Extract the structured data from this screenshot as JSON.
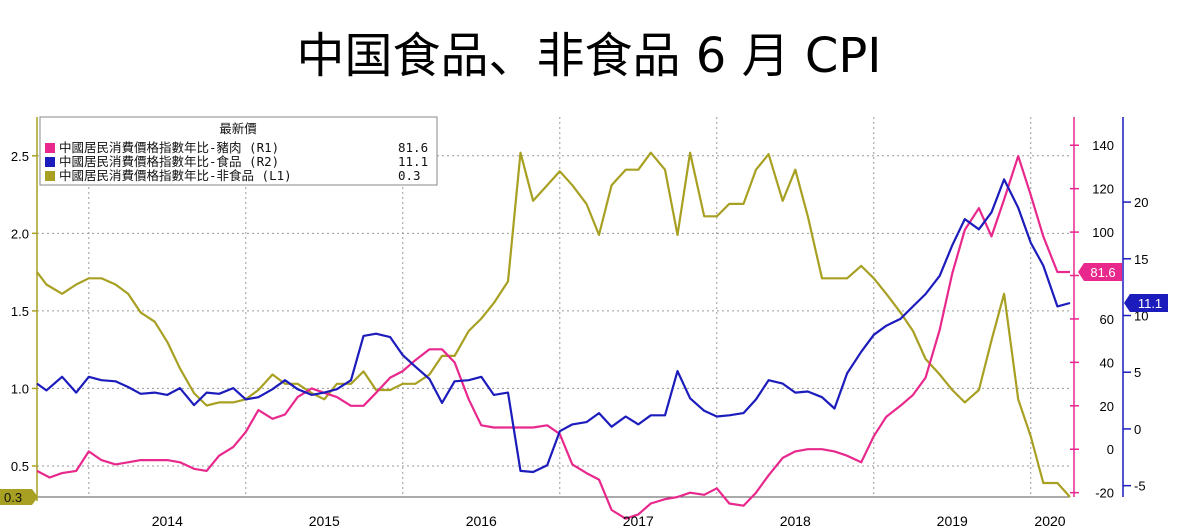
{
  "chart_data": {
    "type": "line",
    "title": "中国食品、非食品 6 月 CPI",
    "x_labels": [
      "2014",
      "2015",
      "2016",
      "2017",
      "2018",
      "2019",
      "2020"
    ],
    "x_range": [
      2013.67,
      2020.25
    ],
    "grid": true,
    "legend": {
      "position": "top-left",
      "header": "最新價",
      "entries": [
        {
          "label": "中國居民消費價格指數年比-豬肉 (R1)",
          "value": "81.6",
          "color": "#e8288c"
        },
        {
          "label": "中國居民消費價格指數年比-食品 (R2)",
          "value": "11.1",
          "color": "#1c1cbd"
        },
        {
          "label": "中國居民消費價格指數年比-非食品 (L1)",
          "value": "0.3",
          "color": "#a8a022"
        }
      ]
    },
    "axes": {
      "L1": {
        "side": "left",
        "ylim": [
          0.3,
          2.75
        ],
        "ticks": [
          0.5,
          1.0,
          1.5,
          2.0,
          2.5
        ],
        "tick_labels": [
          "0.5",
          "1.0",
          "1.5",
          "2.0",
          "2.5"
        ],
        "color": "#a8a022"
      },
      "R1": {
        "side": "right",
        "ylim": [
          -22,
          153
        ],
        "ticks": [
          -20,
          0,
          20,
          40,
          60,
          80,
          100,
          120,
          140
        ],
        "tick_labels": [
          "-20",
          "0",
          "20",
          "40",
          "60",
          "80",
          "100",
          "120",
          "140"
        ],
        "color": "#e8288c"
      },
      "R2": {
        "side": "right",
        "ylim": [
          -6,
          27.5
        ],
        "ticks": [
          -5,
          0,
          5,
          10,
          15,
          20
        ],
        "tick_labels": [
          "-5",
          "0",
          "5",
          "10",
          "15",
          "20"
        ],
        "color": "#1c1cbd"
      }
    },
    "series": [
      {
        "name": "中國居民消費價格指數年比-非食品 (L1)",
        "axis": "L1",
        "color": "#a8a022",
        "last_label": "0.3",
        "points": [
          [
            2013.67,
            1.75
          ],
          [
            2013.73,
            1.67
          ],
          [
            2013.83,
            1.61
          ],
          [
            2013.92,
            1.67
          ],
          [
            2014.0,
            1.71
          ],
          [
            2014.08,
            1.71
          ],
          [
            2014.17,
            1.67
          ],
          [
            2014.25,
            1.61
          ],
          [
            2014.33,
            1.49
          ],
          [
            2014.42,
            1.43
          ],
          [
            2014.5,
            1.3
          ],
          [
            2014.58,
            1.13
          ],
          [
            2014.67,
            0.97
          ],
          [
            2014.75,
            0.89
          ],
          [
            2014.83,
            0.91
          ],
          [
            2014.92,
            0.91
          ],
          [
            2015.0,
            0.93
          ],
          [
            2015.08,
            0.99
          ],
          [
            2015.17,
            1.09
          ],
          [
            2015.25,
            1.03
          ],
          [
            2015.33,
            1.03
          ],
          [
            2015.42,
            0.97
          ],
          [
            2015.5,
            0.93
          ],
          [
            2015.58,
            1.03
          ],
          [
            2015.67,
            1.03
          ],
          [
            2015.75,
            1.11
          ],
          [
            2015.83,
            0.99
          ],
          [
            2015.92,
            0.99
          ],
          [
            2016.0,
            1.03
          ],
          [
            2016.08,
            1.03
          ],
          [
            2016.17,
            1.09
          ],
          [
            2016.25,
            1.21
          ],
          [
            2016.33,
            1.21
          ],
          [
            2016.42,
            1.37
          ],
          [
            2016.5,
            1.45
          ],
          [
            2016.58,
            1.55
          ],
          [
            2016.67,
            1.69
          ],
          [
            2016.75,
            2.52
          ],
          [
            2016.83,
            2.21
          ],
          [
            2016.92,
            2.31
          ],
          [
            2017.0,
            2.4
          ],
          [
            2017.08,
            2.31
          ],
          [
            2017.17,
            2.19
          ],
          [
            2017.25,
            1.99
          ],
          [
            2017.33,
            2.31
          ],
          [
            2017.42,
            2.41
          ],
          [
            2017.5,
            2.41
          ],
          [
            2017.58,
            2.52
          ],
          [
            2017.67,
            2.41
          ],
          [
            2017.75,
            1.99
          ],
          [
            2017.83,
            2.52
          ],
          [
            2017.92,
            2.11
          ],
          [
            2018.0,
            2.11
          ],
          [
            2018.08,
            2.19
          ],
          [
            2018.17,
            2.19
          ],
          [
            2018.25,
            2.41
          ],
          [
            2018.33,
            2.51
          ],
          [
            2018.42,
            2.21
          ],
          [
            2018.5,
            2.41
          ],
          [
            2018.58,
            2.11
          ],
          [
            2018.67,
            1.71
          ],
          [
            2018.75,
            1.71
          ],
          [
            2018.83,
            1.71
          ],
          [
            2018.92,
            1.79
          ],
          [
            2019.0,
            1.71
          ],
          [
            2019.08,
            1.61
          ],
          [
            2019.17,
            1.49
          ],
          [
            2019.25,
            1.37
          ],
          [
            2019.33,
            1.19
          ],
          [
            2019.42,
            1.09
          ],
          [
            2019.5,
            0.99
          ],
          [
            2019.58,
            0.91
          ],
          [
            2019.67,
            0.99
          ],
          [
            2019.75,
            1.31
          ],
          [
            2019.83,
            1.61
          ],
          [
            2019.92,
            0.93
          ],
          [
            2020.0,
            0.69
          ],
          [
            2020.08,
            0.39
          ],
          [
            2020.17,
            0.39
          ],
          [
            2020.25,
            0.3
          ]
        ]
      },
      {
        "name": "中國居民消費價格指數年比-豬肉 (R1)",
        "axis": "R1",
        "color": "#e8288c",
        "last_label": "81.6",
        "points": [
          [
            2013.67,
            -10
          ],
          [
            2013.75,
            -13
          ],
          [
            2013.83,
            -11
          ],
          [
            2013.92,
            -10
          ],
          [
            2014.0,
            -1
          ],
          [
            2014.08,
            -5
          ],
          [
            2014.17,
            -7
          ],
          [
            2014.25,
            -6
          ],
          [
            2014.33,
            -5
          ],
          [
            2014.42,
            -5
          ],
          [
            2014.5,
            -5
          ],
          [
            2014.58,
            -6
          ],
          [
            2014.67,
            -9
          ],
          [
            2014.75,
            -10
          ],
          [
            2014.83,
            -3
          ],
          [
            2014.92,
            1
          ],
          [
            2015.0,
            8
          ],
          [
            2015.08,
            18
          ],
          [
            2015.17,
            14
          ],
          [
            2015.25,
            16
          ],
          [
            2015.33,
            24
          ],
          [
            2015.42,
            28
          ],
          [
            2015.5,
            26
          ],
          [
            2015.58,
            24
          ],
          [
            2015.67,
            20
          ],
          [
            2015.75,
            20
          ],
          [
            2015.83,
            26
          ],
          [
            2015.92,
            33
          ],
          [
            2016.0,
            36
          ],
          [
            2016.08,
            41
          ],
          [
            2016.17,
            46
          ],
          [
            2016.25,
            46
          ],
          [
            2016.33,
            40
          ],
          [
            2016.42,
            23
          ],
          [
            2016.5,
            11
          ],
          [
            2016.58,
            10
          ],
          [
            2016.67,
            10
          ],
          [
            2016.75,
            10
          ],
          [
            2016.83,
            10
          ],
          [
            2016.92,
            11
          ],
          [
            2017.0,
            7
          ],
          [
            2017.08,
            -7
          ],
          [
            2017.17,
            -11
          ],
          [
            2017.25,
            -14
          ],
          [
            2017.33,
            -28
          ],
          [
            2017.42,
            -32
          ],
          [
            2017.5,
            -30
          ],
          [
            2017.58,
            -25
          ],
          [
            2017.67,
            -23
          ],
          [
            2017.75,
            -22
          ],
          [
            2017.83,
            -20
          ],
          [
            2017.92,
            -21
          ],
          [
            2018.0,
            -18
          ],
          [
            2018.08,
            -25
          ],
          [
            2018.17,
            -26
          ],
          [
            2018.25,
            -20
          ],
          [
            2018.33,
            -12
          ],
          [
            2018.42,
            -4
          ],
          [
            2018.5,
            -1
          ],
          [
            2018.58,
            0
          ],
          [
            2018.67,
            0
          ],
          [
            2018.75,
            -1
          ],
          [
            2018.83,
            -3
          ],
          [
            2018.92,
            -6
          ],
          [
            2019.0,
            6
          ],
          [
            2019.08,
            15
          ],
          [
            2019.17,
            20
          ],
          [
            2019.25,
            25
          ],
          [
            2019.33,
            33
          ],
          [
            2019.42,
            55
          ],
          [
            2019.5,
            81
          ],
          [
            2019.58,
            101
          ],
          [
            2019.67,
            111
          ],
          [
            2019.75,
            98
          ],
          [
            2019.83,
            115
          ],
          [
            2019.92,
            135
          ],
          [
            2020.0,
            117
          ],
          [
            2020.08,
            98
          ],
          [
            2020.17,
            81.6
          ],
          [
            2020.25,
            81.6
          ]
        ]
      },
      {
        "name": "中國居民消費價格指數年比-食品 (R2)",
        "axis": "R2",
        "color": "#1c1cbd",
        "last_label": "11.1",
        "points": [
          [
            2013.67,
            4.0
          ],
          [
            2013.73,
            3.4
          ],
          [
            2013.83,
            4.6
          ],
          [
            2013.92,
            3.2
          ],
          [
            2014.0,
            4.6
          ],
          [
            2014.08,
            4.3
          ],
          [
            2014.17,
            4.2
          ],
          [
            2014.25,
            3.7
          ],
          [
            2014.33,
            3.1
          ],
          [
            2014.42,
            3.2
          ],
          [
            2014.5,
            3.0
          ],
          [
            2014.58,
            3.6
          ],
          [
            2014.67,
            2.1
          ],
          [
            2014.75,
            3.2
          ],
          [
            2014.83,
            3.1
          ],
          [
            2014.92,
            3.6
          ],
          [
            2015.0,
            2.6
          ],
          [
            2015.08,
            2.8
          ],
          [
            2015.17,
            3.5
          ],
          [
            2015.25,
            4.3
          ],
          [
            2015.33,
            3.5
          ],
          [
            2015.42,
            3.0
          ],
          [
            2015.5,
            3.2
          ],
          [
            2015.58,
            3.5
          ],
          [
            2015.67,
            4.3
          ],
          [
            2015.75,
            8.2
          ],
          [
            2015.83,
            8.4
          ],
          [
            2015.92,
            8.1
          ],
          [
            2016.0,
            6.5
          ],
          [
            2016.08,
            5.5
          ],
          [
            2016.17,
            4.4
          ],
          [
            2016.25,
            2.3
          ],
          [
            2016.33,
            4.2
          ],
          [
            2016.42,
            4.3
          ],
          [
            2016.5,
            4.6
          ],
          [
            2016.58,
            3.0
          ],
          [
            2016.67,
            3.2
          ],
          [
            2016.75,
            -3.7
          ],
          [
            2016.83,
            -3.8
          ],
          [
            2016.92,
            -3.2
          ],
          [
            2017.0,
            -0.2
          ],
          [
            2017.08,
            0.4
          ],
          [
            2017.17,
            0.6
          ],
          [
            2017.25,
            1.4
          ],
          [
            2017.33,
            0.2
          ],
          [
            2017.42,
            1.1
          ],
          [
            2017.5,
            0.4
          ],
          [
            2017.58,
            1.2
          ],
          [
            2017.67,
            1.2
          ],
          [
            2017.75,
            5.1
          ],
          [
            2017.83,
            2.7
          ],
          [
            2017.92,
            1.6
          ],
          [
            2018.0,
            1.1
          ],
          [
            2018.08,
            1.2
          ],
          [
            2018.17,
            1.4
          ],
          [
            2018.25,
            2.6
          ],
          [
            2018.33,
            4.3
          ],
          [
            2018.42,
            4.0
          ],
          [
            2018.5,
            3.2
          ],
          [
            2018.58,
            3.3
          ],
          [
            2018.67,
            2.8
          ],
          [
            2018.75,
            1.8
          ],
          [
            2018.83,
            4.9
          ],
          [
            2018.92,
            6.8
          ],
          [
            2019.0,
            8.3
          ],
          [
            2019.08,
            9.1
          ],
          [
            2019.17,
            9.7
          ],
          [
            2019.25,
            10.8
          ],
          [
            2019.33,
            11.9
          ],
          [
            2019.42,
            13.5
          ],
          [
            2019.5,
            16.2
          ],
          [
            2019.58,
            18.5
          ],
          [
            2019.67,
            17.6
          ],
          [
            2019.75,
            19.1
          ],
          [
            2019.83,
            22.0
          ],
          [
            2019.92,
            19.5
          ],
          [
            2020.0,
            16.4
          ],
          [
            2020.08,
            14.4
          ],
          [
            2020.17,
            10.8
          ],
          [
            2020.25,
            11.1
          ]
        ]
      }
    ]
  }
}
